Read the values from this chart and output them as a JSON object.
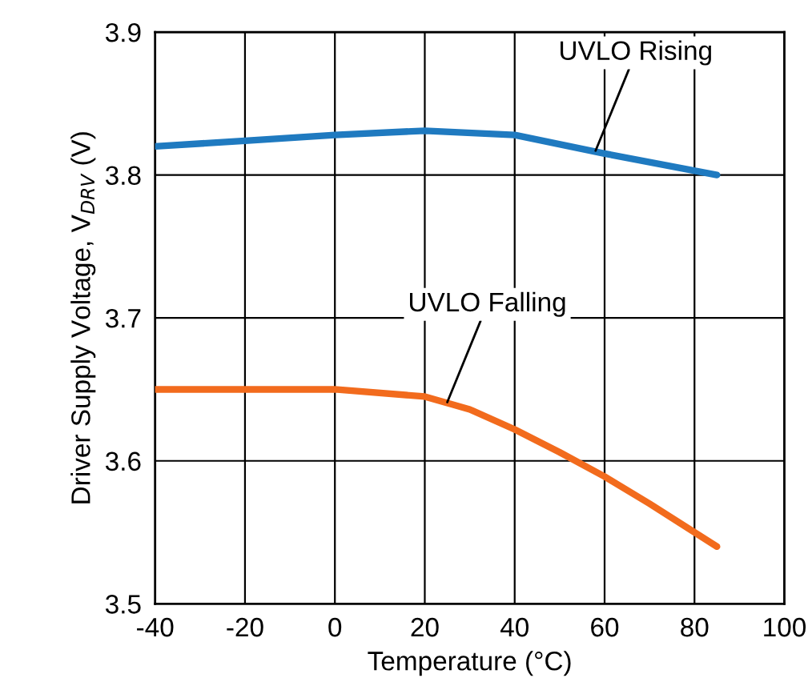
{
  "chart_data": {
    "type": "line",
    "xlabel": "Temperature (°C)",
    "ylabel": "Driver Supply Voltage, V$_{DRV}$ (V)",
    "xlim": [
      -40,
      100
    ],
    "xticks": [
      -40,
      -20,
      0,
      20,
      40,
      60,
      80,
      100
    ],
    "ylim": [
      3.5,
      3.9
    ],
    "yticks": [
      3.5,
      3.6,
      3.7,
      3.8,
      3.9
    ],
    "grid": true,
    "marker": "none",
    "line_style": "solid",
    "series": [
      {
        "color": "#1f7ac0",
        "x": [
          -40,
          -20,
          0,
          20,
          40,
          60,
          85
        ],
        "values": [
          3.82,
          3.824,
          3.828,
          3.831,
          3.828,
          3.815,
          3.8
        ]
      },
      {
        "color": "#f26b1d",
        "x": [
          -40,
          -20,
          0,
          20,
          30,
          40,
          50,
          60,
          70,
          85
        ],
        "values": [
          3.65,
          3.65,
          3.65,
          3.645,
          3.636,
          3.622,
          3.606,
          3.589,
          3.57,
          3.54
        ]
      }
    ],
    "annotations": [
      {
        "text": "UVLO Rising",
        "x": 58,
        "y": 3.817
      },
      {
        "text": "UVLO Falling",
        "x": 25,
        "y": 3.641
      }
    ]
  }
}
